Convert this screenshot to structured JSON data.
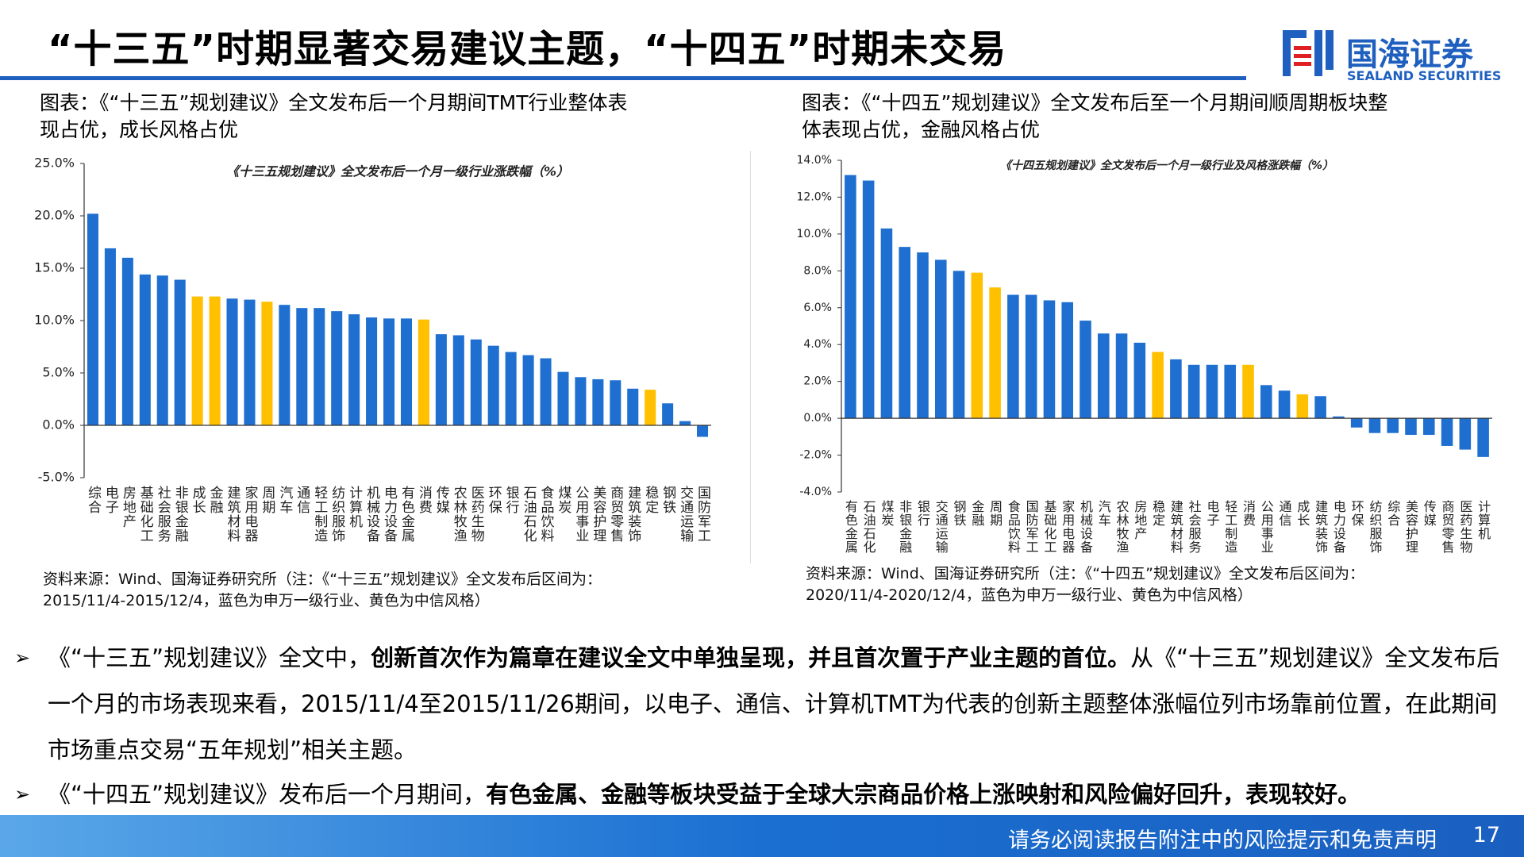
{
  "header": {
    "title": "“十三五”时期显著交易建议主题，“十四五”时期未交易",
    "logo": {
      "name": "国海证券",
      "english": "SEALAND SECURITIES"
    }
  },
  "panels": [
    {
      "caption": [
        "图表：《“十三五”规划建议》全文发布后一个月期间TMT行业整体表",
        "现占优，成长风格占优"
      ],
      "source": [
        "资料来源：Wind、国海证券研究所（注：《“十三五”规划建议》全文发布后区间为：",
        "2015/11/4-2015/12/4，蓝色为申万一级行业、黄色为中信风格）"
      ]
    },
    {
      "caption": [
        "图表：《“十四五”规划建议》全文发布后至一个月期间顺周期板块整",
        "体表现占优，金融风格占优"
      ],
      "source": [
        "资料来源：Wind、国海证券研究所（注：《“十四五”规划建议》全文发布后区间为：",
        "2020/11/4-2020/12/4，蓝色为申万一级行业、黄色为中信风格）"
      ]
    }
  ],
  "chart_data": [
    {
      "type": "bar",
      "title": "《十三五规划建议》全文发布后一个月一级行业涨跌幅（%）",
      "categories": [
        "综合",
        "电子",
        "房地产",
        "基础化工",
        "社会服务",
        "非银金融",
        "成长",
        "金融",
        "建筑材料",
        "家用电器",
        "周期",
        "汽车",
        "通信",
        "轻工制造",
        "纺织服饰",
        "计算机",
        "机械设备",
        "电力设备",
        "有色金属",
        "消费",
        "传媒",
        "农林牧渔",
        "医药生物",
        "环保",
        "银行",
        "石油石化",
        "食品饮料",
        "煤炭",
        "公用事业",
        "美容护理",
        "商贸零售",
        "建筑装饰",
        "稳定",
        "钢铁",
        "交通运输",
        "国防军工"
      ],
      "values": [
        20.2,
        16.9,
        16.0,
        14.4,
        14.3,
        13.9,
        12.3,
        12.3,
        12.1,
        12.0,
        11.8,
        11.5,
        11.2,
        11.2,
        10.9,
        10.6,
        10.3,
        10.2,
        10.2,
        10.1,
        8.7,
        8.6,
        8.2,
        7.6,
        7.0,
        6.7,
        6.4,
        5.1,
        4.6,
        4.4,
        4.3,
        3.5,
        3.4,
        2.1,
        0.4,
        -1.1
      ],
      "colors": [
        "#1f6fd1",
        "#1f6fd1",
        "#1f6fd1",
        "#1f6fd1",
        "#1f6fd1",
        "#1f6fd1",
        "#ffc000",
        "#ffc000",
        "#1f6fd1",
        "#1f6fd1",
        "#ffc000",
        "#1f6fd1",
        "#1f6fd1",
        "#1f6fd1",
        "#1f6fd1",
        "#1f6fd1",
        "#1f6fd1",
        "#1f6fd1",
        "#1f6fd1",
        "#ffc000",
        "#1f6fd1",
        "#1f6fd1",
        "#1f6fd1",
        "#1f6fd1",
        "#1f6fd1",
        "#1f6fd1",
        "#1f6fd1",
        "#1f6fd1",
        "#1f6fd1",
        "#1f6fd1",
        "#1f6fd1",
        "#1f6fd1",
        "#ffc000",
        "#1f6fd1",
        "#1f6fd1",
        "#1f6fd1"
      ],
      "ylim": [
        -5,
        25
      ],
      "yticks": [
        {
          "value": 25,
          "label": "25.0%"
        },
        {
          "value": 20,
          "label": "20.0%"
        },
        {
          "value": 15,
          "label": "15.0%"
        },
        {
          "value": 10,
          "label": "10.0%"
        },
        {
          "value": 5,
          "label": "5.0%"
        },
        {
          "value": 0,
          "label": "0.0%"
        },
        {
          "value": -5,
          "label": "-5.0%"
        }
      ]
    },
    {
      "type": "bar",
      "title": "《十四五规划建议》全文发布后一个月一级行业及风格涨跌幅（%）",
      "categories": [
        "有色金属",
        "石油石化",
        "煤炭",
        "非银金融",
        "银行",
        "交通运输",
        "钢铁",
        "金融",
        "周期",
        "食品饮料",
        "国防军工",
        "基础化工",
        "家用电器",
        "机械设备",
        "汽车",
        "农林牧渔",
        "房地产",
        "稳定",
        "建筑材料",
        "社会服务",
        "电子",
        "轻工制造",
        "消费",
        "公用事业",
        "通信",
        "成长",
        "建筑装饰",
        "电力设备",
        "环保",
        "纺织服饰",
        "综合",
        "美容护理",
        "传媒",
        "商贸零售",
        "医药生物",
        "计算机"
      ],
      "values": [
        13.2,
        12.9,
        10.3,
        9.3,
        9.0,
        8.6,
        8.0,
        7.9,
        7.1,
        6.7,
        6.7,
        6.4,
        6.3,
        5.3,
        4.6,
        4.6,
        4.1,
        3.6,
        3.2,
        2.9,
        2.9,
        2.9,
        2.9,
        1.8,
        1.5,
        1.3,
        1.2,
        0.1,
        -0.5,
        -0.8,
        -0.8,
        -0.9,
        -0.9,
        -1.5,
        -1.7,
        -2.1
      ],
      "colors": [
        "#1f6fd1",
        "#1f6fd1",
        "#1f6fd1",
        "#1f6fd1",
        "#1f6fd1",
        "#1f6fd1",
        "#1f6fd1",
        "#ffc000",
        "#ffc000",
        "#1f6fd1",
        "#1f6fd1",
        "#1f6fd1",
        "#1f6fd1",
        "#1f6fd1",
        "#1f6fd1",
        "#1f6fd1",
        "#1f6fd1",
        "#ffc000",
        "#1f6fd1",
        "#1f6fd1",
        "#1f6fd1",
        "#1f6fd1",
        "#ffc000",
        "#1f6fd1",
        "#1f6fd1",
        "#ffc000",
        "#1f6fd1",
        "#1f6fd1",
        "#1f6fd1",
        "#1f6fd1",
        "#1f6fd1",
        "#1f6fd1",
        "#1f6fd1",
        "#1f6fd1",
        "#1f6fd1",
        "#1f6fd1"
      ],
      "ylim": [
        -4,
        14
      ],
      "yticks": [
        {
          "value": 14,
          "label": "14.0%"
        },
        {
          "value": 12,
          "label": "12.0%"
        },
        {
          "value": 10,
          "label": "10.0%"
        },
        {
          "value": 8,
          "label": "8.0%"
        },
        {
          "value": 6,
          "label": "6.0%"
        },
        {
          "value": 4,
          "label": "4.0%"
        },
        {
          "value": 2,
          "label": "2.0%"
        },
        {
          "value": 0,
          "label": "0.0%"
        },
        {
          "value": -2,
          "label": "-2.0%"
        },
        {
          "value": -4,
          "label": "-4.0%"
        }
      ]
    }
  ],
  "bullets": [
    [
      "《“十三五”规划建议》全文中，",
      "创新首次作为篇章在建议全文中单独呈现，并且首次置于产业主题的首位。",
      "从《“十三五”规划建议》全文发布后一个月的市场表现来看，2015/11/4至2015/11/26期间，以电子、通信、计算机TMT为代表的创新主题整体涨幅位列市场靠前位置，在此期间市场重点交易“五年规划”相关主题。"
    ],
    [
      "《“十四五”规划建议》发布后一个月期间，",
      "有色金属、金融等板块受益于全球大宗商品价格上涨映射和风险偏好回升，表现较好。"
    ]
  ],
  "footer": {
    "disclaimer": "请务必阅读报告附注中的风险提示和免责声明",
    "page": "17"
  }
}
